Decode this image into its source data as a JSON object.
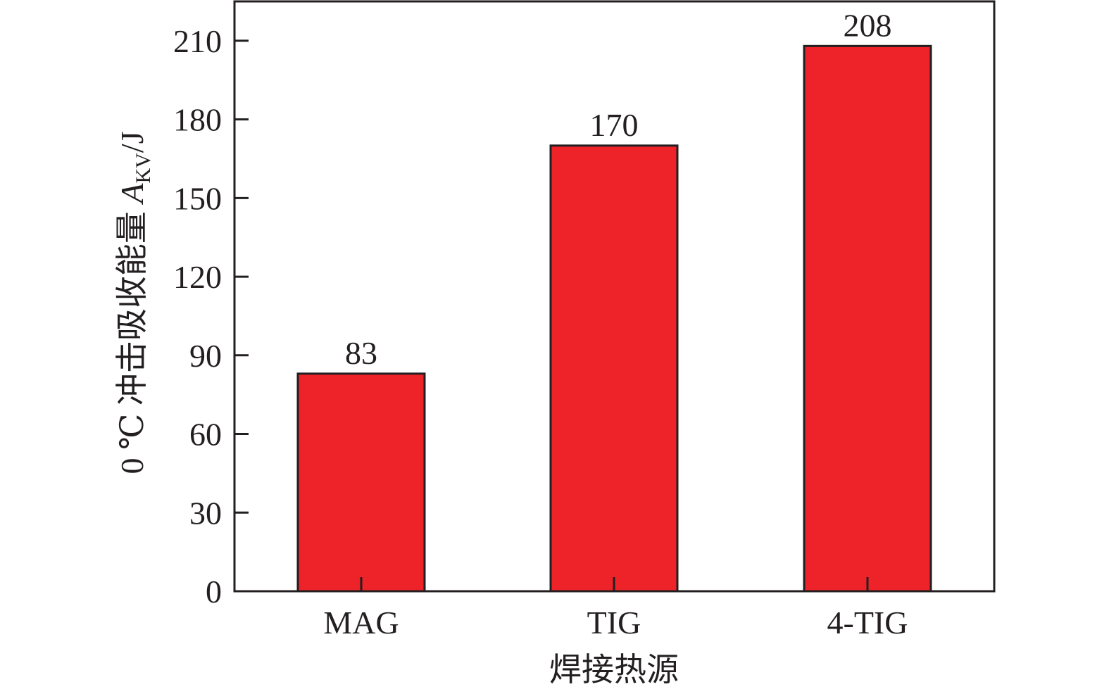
{
  "chart_data": {
    "type": "bar",
    "categories": [
      "MAG",
      "TIG",
      "4-TIG"
    ],
    "values": [
      83,
      170,
      208
    ],
    "data_labels": [
      "83",
      "170",
      "208"
    ],
    "title": "",
    "xlabel": "焊接热源",
    "ylabel": {
      "prefix": "0 ℃ 冲击吸收能量 ",
      "symbol": "A",
      "subscript": "KV",
      "unit": "/J"
    },
    "ylim": [
      0,
      225
    ],
    "yticks": [
      0,
      30,
      60,
      90,
      120,
      150,
      180,
      210
    ],
    "grid": false,
    "legend": "none",
    "bar_color": "#ee2229",
    "axis_color": "#231f20"
  }
}
